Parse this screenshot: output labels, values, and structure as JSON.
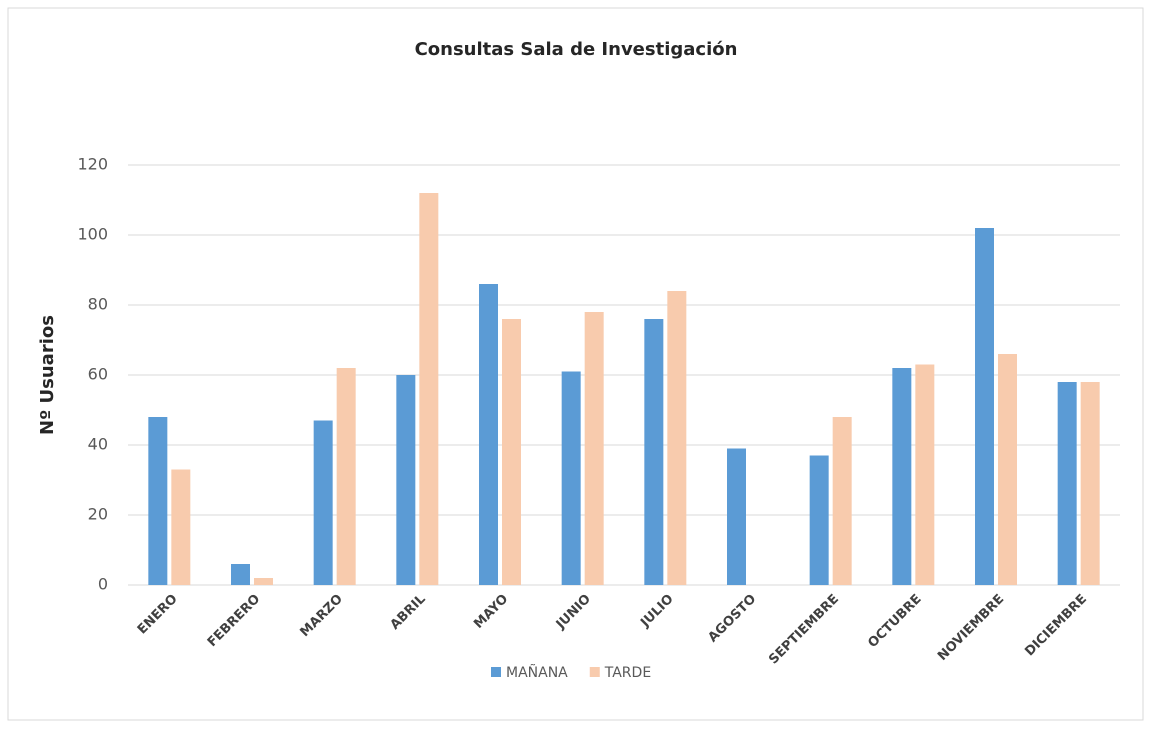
{
  "chart_data": {
    "type": "bar",
    "title": "Consultas  Sala de Investigación",
    "y_label": "Nº Usuarios",
    "categories": [
      "ENERO",
      "FEBRERO",
      "MARZO",
      "ABRIL",
      "MAYO",
      "JUNIO",
      "JULIO",
      "AGOSTO",
      "SEPTIEMBRE",
      "OCTUBRE",
      "NOVIEMBRE",
      "DICIEMBRE"
    ],
    "series": [
      {
        "name": "MAÑANA",
        "color": "#5b9bd5",
        "values": [
          48,
          6,
          47,
          60,
          86,
          61,
          76,
          39,
          37,
          62,
          102,
          58
        ]
      },
      {
        "name": "TARDE",
        "color": "#f8cbad",
        "values": [
          33,
          2,
          62,
          112,
          76,
          78,
          84,
          0,
          48,
          63,
          66,
          58
        ]
      }
    ],
    "ylim": [
      0,
      120
    ],
    "yticks": [
      0,
      20,
      40,
      60,
      80,
      100,
      120
    ],
    "grid": true,
    "legend": "bottom"
  }
}
